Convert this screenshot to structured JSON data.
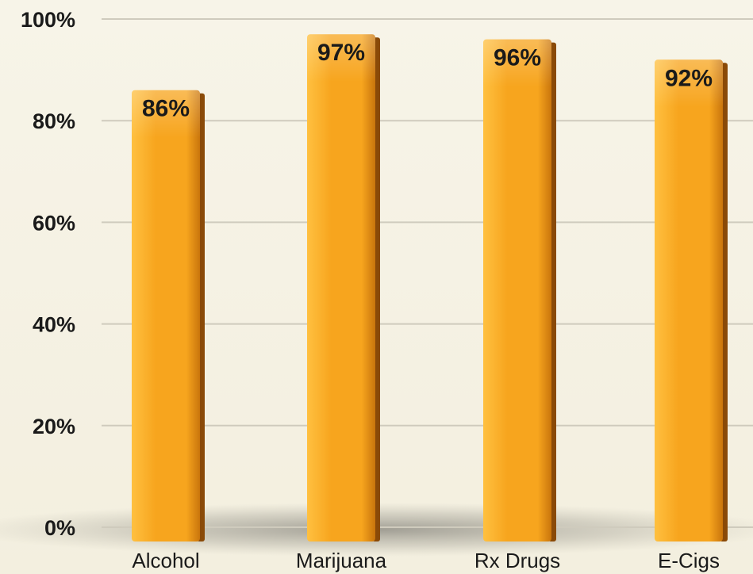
{
  "chart_data": {
    "type": "bar",
    "categories": [
      "Alcohol",
      "Marijuana",
      "Rx Drugs",
      "E-Cigs"
    ],
    "values": [
      86,
      97,
      96,
      92
    ],
    "value_labels": [
      "86%",
      "97%",
      "96%",
      "92%"
    ],
    "yticks": [
      0,
      20,
      40,
      60,
      80,
      100
    ],
    "ytick_labels": [
      "0%",
      "20%",
      "40%",
      "60%",
      "80%",
      "100%"
    ],
    "ylim": [
      0,
      100
    ],
    "grid": true,
    "colors": {
      "bar": "#f7a51e",
      "bar_highlight": "#ffc040",
      "bar_shadow": "#c9750c",
      "bar_side": "#8a4a08",
      "grid": "#cfcbbd",
      "background": "#f5f1e2"
    }
  }
}
